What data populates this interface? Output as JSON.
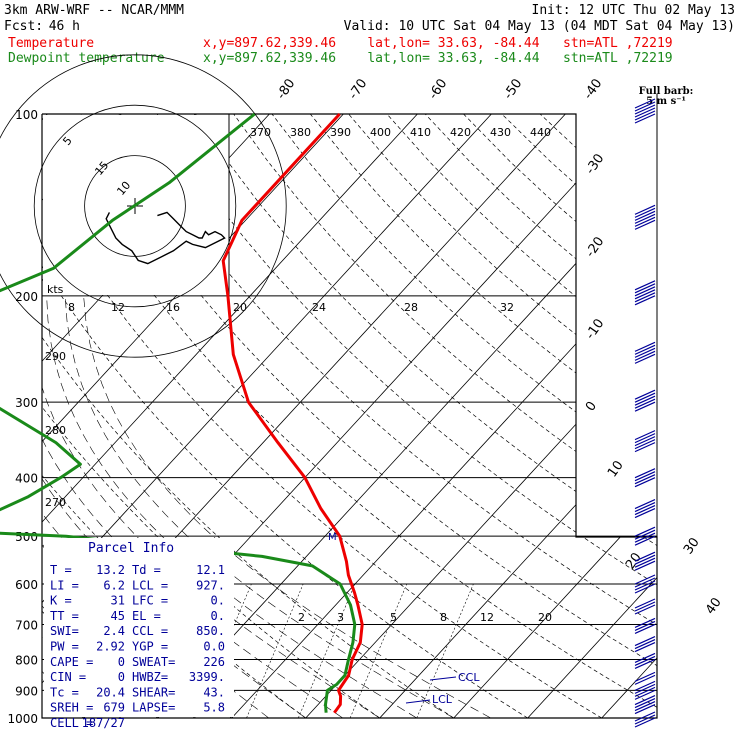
{
  "header": {
    "model": "3km ARW-WRF -- NCAR/MMM",
    "init": "Init: 12 UTC Thu 02 May 13",
    "fcst_label": "Fcst:",
    "fcst_value": "46 h",
    "valid": "Valid: 10 UTC Sat 04 May 13 (04 MDT Sat 04 May 13)",
    "temp_label": "Temperature",
    "dew_label": "Dewpoint temperature",
    "location": "x,y=897.62,339.46    lat,lon= 33.63, -84.44   stn=ATL ,72219"
  },
  "colors": {
    "temperature": "#ee0000",
    "dewpoint": "#1a8a1a",
    "info": "#000099",
    "frame": "#000000"
  },
  "barb_legend": {
    "line1": "Full barb:",
    "line2": "5 m s⁻¹"
  },
  "hodograph": {
    "kts_label": "kts",
    "ring_labels": [
      "5",
      "10",
      "15"
    ],
    "path_uv": [
      [
        7,
        -3
      ],
      [
        10,
        -2
      ],
      [
        12,
        -4
      ],
      [
        14,
        -6
      ],
      [
        16,
        -8
      ],
      [
        18,
        -9
      ],
      [
        20,
        -10
      ],
      [
        21,
        -10
      ],
      [
        22,
        -8
      ],
      [
        23,
        -9
      ],
      [
        25,
        -8
      ],
      [
        27,
        -9
      ],
      [
        28,
        -10
      ],
      [
        26,
        -11
      ],
      [
        22,
        -13
      ],
      [
        18,
        -12
      ],
      [
        16,
        -11
      ],
      [
        12,
        -14
      ],
      [
        8,
        -16
      ],
      [
        4,
        -18
      ],
      [
        1,
        -17
      ],
      [
        -1,
        -14
      ],
      [
        -4,
        -12
      ],
      [
        -6,
        -10
      ],
      [
        -7,
        -8
      ],
      [
        -8,
        -6
      ],
      [
        -9,
        -4
      ],
      [
        -8,
        -2
      ]
    ]
  },
  "parcel_info": {
    "title": "Parcel Info",
    "rows": [
      [
        "T  =",
        "13.2",
        "Td =",
        "12.1"
      ],
      [
        "LI =",
        "6.2",
        "LCL =",
        "927."
      ],
      [
        "K  =",
        "31",
        "LFC =",
        "0."
      ],
      [
        "TT =",
        "45",
        "EL  =",
        "0."
      ],
      [
        "SWI=",
        "2.4",
        "CCL =",
        "850."
      ],
      [
        "PW =",
        "2.92",
        "YGP =",
        "0.0"
      ],
      [
        "CAPE =",
        "0",
        "SWEAT=",
        "226"
      ],
      [
        "CIN  =",
        "0",
        "HWBZ=",
        "3399."
      ],
      [
        "Tc  =",
        "20.4",
        "SHEAR=",
        "43."
      ],
      [
        "SREH =",
        "679",
        "LAPSE=",
        "5.8"
      ],
      [
        "CELL =",
        "187/27",
        "",
        ""
      ]
    ]
  },
  "chart_data": {
    "type": "line",
    "title": "",
    "xlabel": "",
    "ylabel": "",
    "pressure_levels_hPa": [
      100,
      200,
      300,
      400,
      500,
      600,
      700,
      800,
      900,
      1000
    ],
    "pressure_tick_labels": [
      "100",
      "200",
      "300",
      "400",
      "500",
      "600",
      "700",
      "800",
      "900",
      "1000"
    ],
    "skew_isotherm_labels_C": [
      "-80",
      "-70",
      "-60",
      "-50",
      "-40",
      "-30",
      "-20",
      "-10",
      "0",
      "10",
      "20",
      "30",
      "40"
    ],
    "theta_labels_K": [
      "370",
      "380",
      "390",
      "400",
      "410",
      "420",
      "430",
      "440"
    ],
    "theta_e_labels": [
      "8",
      "12",
      "16",
      "20",
      "24",
      "28",
      "32"
    ],
    "theta_e_left_labels": [
      "290",
      "280",
      "270"
    ],
    "mixing_ratio_labels_gkg": [
      "2",
      "3",
      "5",
      "8",
      "12",
      "20"
    ],
    "level_markers": [
      "CCL",
      "LCL"
    ],
    "plc_marker": "M",
    "series": [
      {
        "name": "Temperature",
        "points": [
          [
            100,
            -60.5
          ],
          [
            120,
            -60.5
          ],
          [
            150,
            -60.5
          ],
          [
            175,
            -58
          ],
          [
            200,
            -53
          ],
          [
            250,
            -45
          ],
          [
            300,
            -37
          ],
          [
            350,
            -28
          ],
          [
            400,
            -20
          ],
          [
            450,
            -14
          ],
          [
            500,
            -8
          ],
          [
            550,
            -4
          ],
          [
            580,
            -2
          ],
          [
            620,
            1
          ],
          [
            650,
            3
          ],
          [
            700,
            6
          ],
          [
            750,
            8
          ],
          [
            800,
            9
          ],
          [
            850,
            10.5
          ],
          [
            900,
            11
          ],
          [
            920,
            12
          ],
          [
            950,
            13
          ],
          [
            980,
            13.2
          ]
        ]
      },
      {
        "name": "Dewpoint temperature",
        "points": [
          [
            100,
            -72
          ],
          [
            130,
            -75
          ],
          [
            150,
            -78
          ],
          [
            180,
            -80
          ],
          [
            210,
            -88
          ],
          [
            230,
            -91
          ],
          [
            250,
            -86
          ],
          [
            280,
            -78
          ],
          [
            300,
            -72
          ],
          [
            350,
            -58
          ],
          [
            380,
            -52
          ],
          [
            400,
            -53
          ],
          [
            430,
            -55
          ],
          [
            460,
            -58
          ],
          [
            490,
            -62
          ],
          [
            500,
            -45
          ],
          [
            540,
            -16
          ],
          [
            560,
            -8
          ],
          [
            600,
            -2
          ],
          [
            650,
            2
          ],
          [
            700,
            5
          ],
          [
            750,
            7
          ],
          [
            800,
            8.5
          ],
          [
            850,
            10
          ],
          [
            880,
            10
          ],
          [
            900,
            9.5
          ],
          [
            950,
            11
          ],
          [
            980,
            12.1
          ]
        ]
      }
    ],
    "wind_barbs_knots": [
      [
        100,
        60
      ],
      [
        150,
        55
      ],
      [
        200,
        55
      ],
      [
        250,
        50
      ],
      [
        300,
        45
      ],
      [
        350,
        45
      ],
      [
        400,
        40
      ],
      [
        450,
        40
      ],
      [
        500,
        40
      ],
      [
        550,
        35
      ],
      [
        600,
        35
      ],
      [
        650,
        30
      ],
      [
        700,
        25
      ],
      [
        750,
        25
      ],
      [
        800,
        25
      ],
      [
        850,
        20
      ],
      [
        900,
        35
      ],
      [
        950,
        40
      ],
      [
        1000,
        30
      ]
    ]
  }
}
